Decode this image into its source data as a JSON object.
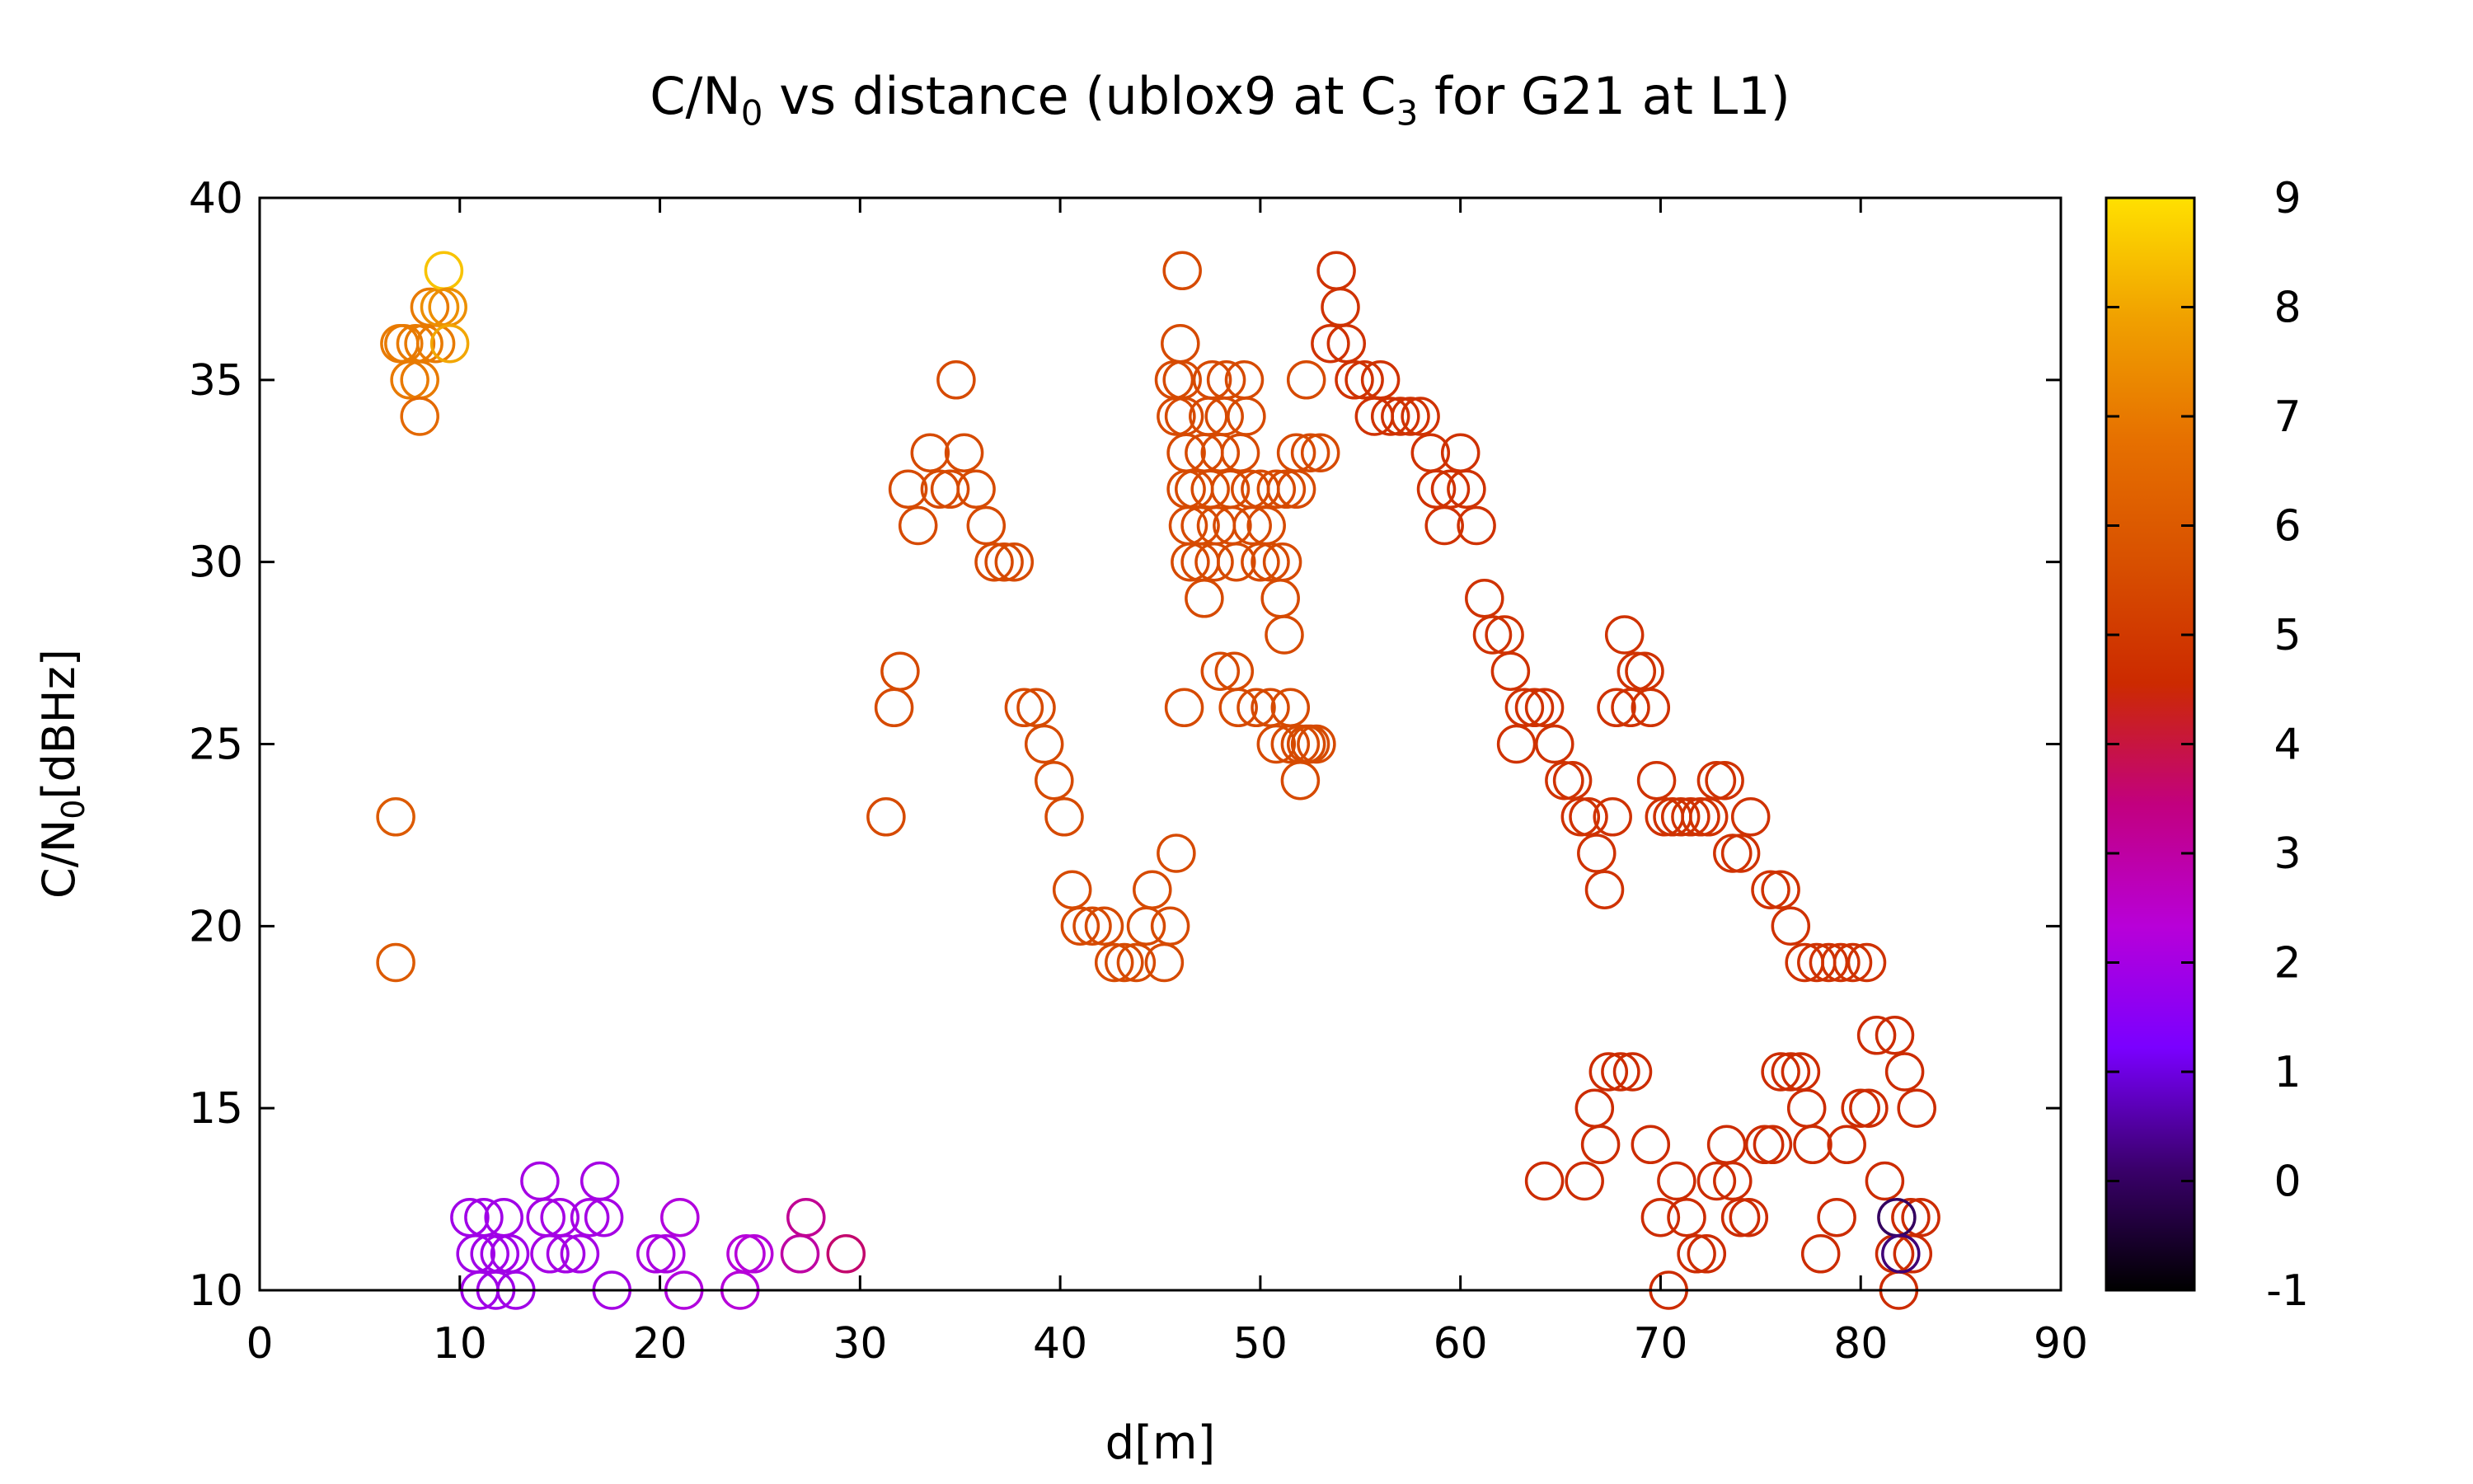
{
  "chart_data": {
    "type": "scatter",
    "title": {
      "part1": "C/N",
      "sub1": "0",
      "part2": " vs distance (ublox9 at C",
      "sub2": "3",
      "part3": " for G21 at L1)"
    },
    "ylabel": {
      "part1": "C/N",
      "sub1": "0",
      "part2": "[dBHz]"
    },
    "xlabel": "d[m]",
    "xlim": [
      0,
      90
    ],
    "ylim": [
      10,
      40
    ],
    "xticks": [
      "0",
      "10",
      "20",
      "30",
      "40",
      "50",
      "60",
      "70",
      "80",
      "90"
    ],
    "yticks": [
      "10",
      "15",
      "20",
      "25",
      "30",
      "35",
      "40"
    ],
    "colorbar": {
      "range": [
        -1,
        9
      ],
      "ticks": [
        "-1",
        "0",
        "1",
        "2",
        "3",
        "4",
        "5",
        "6",
        "7",
        "8",
        "9"
      ],
      "colors": [
        "#000000",
        "#3a006b",
        "#7a00ff",
        "#b800d8",
        "#c2007f",
        "#cc2a00",
        "#d85000",
        "#e67000",
        "#f0a000",
        "#ffe000"
      ]
    },
    "marker": "open-circle",
    "points": [
      [
        7,
        36,
        7
      ],
      [
        7.2,
        36,
        7
      ],
      [
        7.5,
        35,
        7
      ],
      [
        7.8,
        36,
        7
      ],
      [
        8,
        35,
        7
      ],
      [
        8.2,
        36,
        7
      ],
      [
        8.5,
        37,
        7
      ],
      [
        8.8,
        36,
        7
      ],
      [
        9,
        37,
        7.5
      ],
      [
        9.2,
        38,
        8.5
      ],
      [
        9.4,
        37,
        7.5
      ],
      [
        9.5,
        36,
        8
      ],
      [
        8,
        34,
        6.5
      ],
      [
        6.8,
        23,
        6
      ],
      [
        6.8,
        19,
        6
      ],
      [
        10.5,
        12,
        1.9
      ],
      [
        10.8,
        11,
        1.9
      ],
      [
        11,
        10,
        1.9
      ],
      [
        11.2,
        12,
        1.9
      ],
      [
        11.5,
        11,
        1.9
      ],
      [
        11.8,
        10,
        1.9
      ],
      [
        12,
        11,
        1.9
      ],
      [
        12.2,
        12,
        1.9
      ],
      [
        12.5,
        11,
        1.9
      ],
      [
        12.8,
        10,
        1.9
      ],
      [
        14,
        13,
        2
      ],
      [
        14.3,
        12,
        2
      ],
      [
        14.5,
        11,
        2
      ],
      [
        15,
        12,
        2
      ],
      [
        15.3,
        11,
        2
      ],
      [
        16,
        11,
        2
      ],
      [
        16.5,
        12,
        2
      ],
      [
        17,
        13,
        2
      ],
      [
        17.2,
        12,
        2
      ],
      [
        17.6,
        10,
        2
      ],
      [
        19.8,
        11,
        2.1
      ],
      [
        20.3,
        11,
        2.1
      ],
      [
        21,
        12,
        2.2
      ],
      [
        21.2,
        10,
        2.2
      ],
      [
        24,
        10,
        2.3
      ],
      [
        24.3,
        11,
        2.3
      ],
      [
        24.7,
        11,
        2.3
      ],
      [
        27,
        11,
        3
      ],
      [
        27.3,
        12,
        3.2
      ],
      [
        29.3,
        11,
        3.6
      ],
      [
        31.3,
        23,
        5.5
      ],
      [
        31.7,
        26,
        5.5
      ],
      [
        32,
        27,
        5.5
      ],
      [
        32.4,
        32,
        5.5
      ],
      [
        32.9,
        31,
        5.5
      ],
      [
        33.5,
        33,
        5.5
      ],
      [
        34,
        32,
        5.5
      ],
      [
        34.5,
        32,
        5.5
      ],
      [
        34.8,
        35,
        5.5
      ],
      [
        35.2,
        33,
        5.5
      ],
      [
        35.8,
        32,
        5.5
      ],
      [
        36.3,
        31,
        5.5
      ],
      [
        36.7,
        30,
        5.5
      ],
      [
        37.2,
        30,
        5.5
      ],
      [
        37.7,
        30,
        5.5
      ],
      [
        38.2,
        26,
        5.5
      ],
      [
        38.8,
        26,
        5.5
      ],
      [
        39.2,
        25,
        5.5
      ],
      [
        39.7,
        24,
        5.5
      ],
      [
        40.2,
        23,
        5.5
      ],
      [
        40.6,
        21,
        5.5
      ],
      [
        41,
        20,
        5.5
      ],
      [
        41.6,
        20,
        5.5
      ],
      [
        42.2,
        20,
        5.5
      ],
      [
        42.7,
        19,
        5.5
      ],
      [
        43.2,
        19,
        5.5
      ],
      [
        43.8,
        19,
        5.5
      ],
      [
        44.3,
        20,
        5.5
      ],
      [
        44.6,
        21,
        5.5
      ],
      [
        45.2,
        19,
        5.5
      ],
      [
        45.5,
        20,
        5.5
      ],
      [
        45.8,
        22,
        5.5
      ],
      [
        46.2,
        26,
        5.5
      ],
      [
        45.7,
        35,
        5.5
      ],
      [
        45.8,
        34,
        5.5
      ],
      [
        46,
        36,
        5.5
      ],
      [
        46.1,
        38,
        5.5
      ],
      [
        46.1,
        35,
        5.5
      ],
      [
        46.2,
        34,
        5.5
      ],
      [
        46.3,
        33,
        5.5
      ],
      [
        46.3,
        32,
        5.5
      ],
      [
        46.4,
        31,
        5.5
      ],
      [
        46.5,
        30,
        5.5
      ],
      [
        46.7,
        32,
        5.5
      ],
      [
        47,
        31,
        5.5
      ],
      [
        47,
        30,
        5.5
      ],
      [
        47.2,
        29,
        5.5
      ],
      [
        47.2,
        33,
        5.5
      ],
      [
        47.4,
        34,
        5.5
      ],
      [
        47.5,
        32,
        5.5
      ],
      [
        47.6,
        35,
        5.5
      ],
      [
        47.7,
        30,
        5.5
      ],
      [
        47.8,
        31,
        5.5
      ],
      [
        48,
        27,
        5.5
      ],
      [
        48,
        33,
        5.5
      ],
      [
        48.2,
        34,
        5.5
      ],
      [
        48.3,
        35,
        5.5
      ],
      [
        48.5,
        32,
        5.5
      ],
      [
        48.6,
        31,
        5.5
      ],
      [
        48.7,
        27,
        5.5
      ],
      [
        48.8,
        30,
        5.5
      ],
      [
        48.9,
        26,
        5.5
      ],
      [
        49,
        33,
        5.5
      ],
      [
        49.2,
        35,
        5.5
      ],
      [
        49.3,
        34,
        5.5
      ],
      [
        49.5,
        32,
        5.5
      ],
      [
        49.6,
        31,
        5.5
      ],
      [
        49.8,
        26,
        5.5
      ],
      [
        50,
        30,
        5.5
      ],
      [
        50,
        32,
        5.5
      ],
      [
        50.3,
        31,
        5.5
      ],
      [
        50.5,
        30,
        5.5
      ],
      [
        50.5,
        26,
        5.5
      ],
      [
        50.8,
        32,
        5.5
      ],
      [
        50.8,
        25,
        5.5
      ],
      [
        51,
        29,
        5.5
      ],
      [
        51.1,
        30,
        5.5
      ],
      [
        51.2,
        28,
        5.5
      ],
      [
        51.3,
        32,
        5.5
      ],
      [
        51.5,
        26,
        5.5
      ],
      [
        51.5,
        25,
        5.5
      ],
      [
        51.8,
        33,
        5.5
      ],
      [
        51.8,
        32,
        5.5
      ],
      [
        52,
        25,
        5.5
      ],
      [
        52,
        24,
        5.5
      ],
      [
        52.3,
        25,
        5.5
      ],
      [
        52.5,
        25,
        5.5
      ],
      [
        52.3,
        35,
        5.5
      ],
      [
        52.5,
        33,
        5.5
      ],
      [
        52.8,
        25,
        5.5
      ],
      [
        53,
        33,
        5.5
      ],
      [
        53.5,
        36,
        4.8
      ],
      [
        53.8,
        38,
        4.8
      ],
      [
        54,
        37,
        4.8
      ],
      [
        54.3,
        36,
        4.8
      ],
      [
        54.7,
        35,
        4.8
      ],
      [
        55.2,
        35,
        4.8
      ],
      [
        55.7,
        34,
        4.8
      ],
      [
        56,
        35,
        4.8
      ],
      [
        56.5,
        34,
        4.8
      ],
      [
        57,
        34,
        4.8
      ],
      [
        57.5,
        34,
        4.8
      ],
      [
        58,
        34,
        4.8
      ],
      [
        58.5,
        33,
        4.8
      ],
      [
        58.8,
        32,
        4.8
      ],
      [
        59.2,
        31,
        4.8
      ],
      [
        59.5,
        32,
        4.8
      ],
      [
        60,
        33,
        4.8
      ],
      [
        60.3,
        32,
        4.8
      ],
      [
        60.8,
        31,
        4.8
      ],
      [
        61.2,
        29,
        4.8
      ],
      [
        61.6,
        28,
        4.8
      ],
      [
        62.2,
        28,
        4.8
      ],
      [
        62.5,
        27,
        4.8
      ],
      [
        62.8,
        25,
        4.8
      ],
      [
        63.2,
        26,
        4.8
      ],
      [
        63.7,
        26,
        4.8
      ],
      [
        64.2,
        26,
        4.8
      ],
      [
        64.7,
        25,
        4.8
      ],
      [
        65.2,
        24,
        4.8
      ],
      [
        65.6,
        24,
        4.8
      ],
      [
        66,
        23,
        4.8
      ],
      [
        66.4,
        23,
        4.8
      ],
      [
        66.8,
        22,
        4.8
      ],
      [
        67.2,
        21,
        4.8
      ],
      [
        67.6,
        23,
        4.8
      ],
      [
        67.8,
        26,
        4.8
      ],
      [
        68.2,
        28,
        4.8
      ],
      [
        68.5,
        26,
        4.8
      ],
      [
        68.8,
        27,
        4.8
      ],
      [
        69.2,
        27,
        4.8
      ],
      [
        69.5,
        26,
        4.8
      ],
      [
        69.8,
        24,
        4.8
      ],
      [
        70.2,
        23,
        4.8
      ],
      [
        70.6,
        23,
        4.8
      ],
      [
        71,
        23,
        4.8
      ],
      [
        71.5,
        23,
        4.8
      ],
      [
        72,
        23,
        4.8
      ],
      [
        72.4,
        23,
        4.8
      ],
      [
        72.8,
        24,
        4.8
      ],
      [
        73.2,
        24,
        4.8
      ],
      [
        73.6,
        22,
        4.8
      ],
      [
        74,
        22,
        4.8
      ],
      [
        74.5,
        23,
        4.8
      ],
      [
        75.5,
        21,
        4.8
      ],
      [
        76,
        21,
        4.8
      ],
      [
        76.5,
        20,
        4.8
      ],
      [
        77.2,
        19,
        4.8
      ],
      [
        77.8,
        19,
        4.8
      ],
      [
        78.4,
        19,
        4.8
      ],
      [
        79,
        19,
        4.8
      ],
      [
        79.6,
        19,
        4.8
      ],
      [
        80.3,
        19,
        4.8
      ],
      [
        64.2,
        13,
        4.6
      ],
      [
        66.2,
        13,
        4.6
      ],
      [
        66.7,
        15,
        4.6
      ],
      [
        67,
        14,
        4.6
      ],
      [
        67.4,
        16,
        4.6
      ],
      [
        68,
        16,
        4.6
      ],
      [
        68.6,
        16,
        4.6
      ],
      [
        69.5,
        14,
        4.6
      ],
      [
        70,
        12,
        4.6
      ],
      [
        70.4,
        10,
        4.6
      ],
      [
        70.8,
        13,
        4.6
      ],
      [
        71.3,
        12,
        4.6
      ],
      [
        71.8,
        11,
        4.6
      ],
      [
        72.3,
        11,
        4.6
      ],
      [
        72.8,
        13,
        4.6
      ],
      [
        73.3,
        14,
        4.6
      ],
      [
        73.6,
        13,
        4.6
      ],
      [
        74,
        12,
        4.6
      ],
      [
        74.4,
        12,
        4.6
      ],
      [
        75.2,
        14,
        4.6
      ],
      [
        75.6,
        14,
        4.6
      ],
      [
        76,
        16,
        4.6
      ],
      [
        76.5,
        16,
        4.6
      ],
      [
        77,
        16,
        4.6
      ],
      [
        77.3,
        15,
        4.6
      ],
      [
        77.6,
        14,
        4.6
      ],
      [
        78,
        11,
        4.6
      ],
      [
        78.8,
        12,
        4.6
      ],
      [
        79.3,
        14,
        4.6
      ],
      [
        80,
        15,
        4.6
      ],
      [
        80.4,
        15,
        4.6
      ],
      [
        80.8,
        17,
        4.6
      ],
      [
        81.2,
        13,
        4.6
      ],
      [
        81.7,
        17,
        4.6
      ],
      [
        81.7,
        11,
        4.6
      ],
      [
        81.9,
        10,
        4.6
      ],
      [
        82.2,
        16,
        4.6
      ],
      [
        82.5,
        12,
        4.6
      ],
      [
        82.6,
        11,
        4.6
      ],
      [
        82.8,
        15,
        4.6
      ],
      [
        83,
        12,
        4.6
      ],
      [
        81.8,
        12,
        0
      ],
      [
        82,
        11,
        0.2
      ]
    ]
  }
}
